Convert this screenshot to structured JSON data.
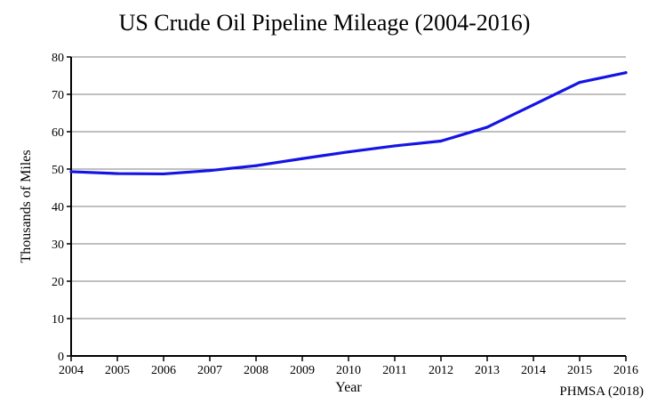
{
  "colors": {
    "line": "#1414e6",
    "grid": "#808080",
    "axis": "#000000",
    "background": "#ffffff"
  },
  "chart_data": {
    "type": "line",
    "title": "US Crude Oil Pipeline Mileage (2004-2016)",
    "xlabel": "Year",
    "ylabel": "Thousands of Miles",
    "source": "PHMSA (2018)",
    "x": [
      "2004",
      "2005",
      "2006",
      "2007",
      "2008",
      "2009",
      "2010",
      "2011",
      "2012",
      "2013",
      "2014",
      "2015",
      "2016"
    ],
    "series": [
      {
        "values": [
          49.3,
          48.8,
          48.7,
          49.6,
          50.9,
          52.8,
          54.6,
          56.2,
          57.5,
          61.2,
          67.2,
          73.2,
          75.8
        ]
      }
    ],
    "ylim": [
      0,
      80
    ],
    "yticks": [
      0,
      10,
      20,
      30,
      40,
      50,
      60,
      70,
      80
    ],
    "grid": "horizontal",
    "legend": "none"
  }
}
